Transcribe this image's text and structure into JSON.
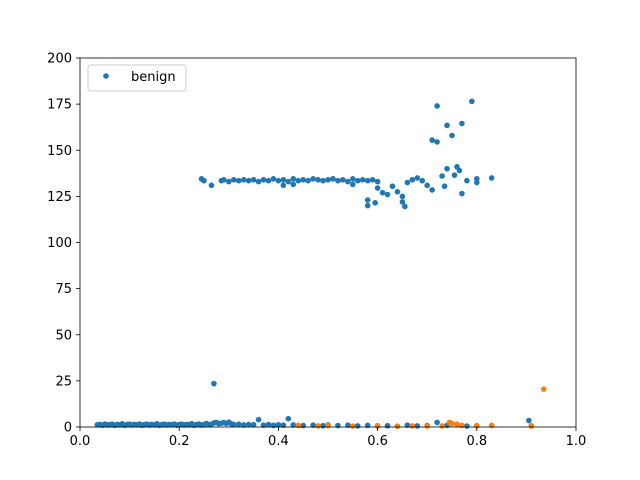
{
  "chart_data": {
    "type": "scatter",
    "title": "",
    "xlabel": "",
    "ylabel": "",
    "xlim": [
      0.0,
      1.0
    ],
    "ylim": [
      0,
      200
    ],
    "x_ticks": [
      "0.0",
      "0.2",
      "0.4",
      "0.6",
      "0.8",
      "1.0"
    ],
    "y_ticks": [
      "0",
      "25",
      "50",
      "75",
      "100",
      "125",
      "150",
      "175",
      "200"
    ],
    "grid": false,
    "legend": {
      "placement": "top-left",
      "entries": [
        "benign"
      ]
    },
    "series": [
      {
        "name": "benign",
        "color": "#1f77b4",
        "points": [
          [
            0.035,
            1.2
          ],
          [
            0.04,
            1.4
          ],
          [
            0.045,
            1.0
          ],
          [
            0.05,
            1.6
          ],
          [
            0.055,
            1.1
          ],
          [
            0.06,
            1.3
          ],
          [
            0.065,
            1.5
          ],
          [
            0.07,
            0.9
          ],
          [
            0.075,
            1.4
          ],
          [
            0.08,
            1.2
          ],
          [
            0.085,
            1.7
          ],
          [
            0.09,
            1.0
          ],
          [
            0.095,
            1.3
          ],
          [
            0.1,
            1.5
          ],
          [
            0.105,
            1.1
          ],
          [
            0.11,
            1.4
          ],
          [
            0.115,
            1.2
          ],
          [
            0.12,
            1.6
          ],
          [
            0.125,
            1.0
          ],
          [
            0.13,
            1.3
          ],
          [
            0.135,
            1.5
          ],
          [
            0.14,
            1.1
          ],
          [
            0.145,
            1.4
          ],
          [
            0.15,
            1.2
          ],
          [
            0.155,
            1.7
          ],
          [
            0.16,
            1.0
          ],
          [
            0.165,
            1.3
          ],
          [
            0.17,
            1.5
          ],
          [
            0.175,
            1.1
          ],
          [
            0.18,
            1.4
          ],
          [
            0.185,
            1.2
          ],
          [
            0.19,
            1.6
          ],
          [
            0.195,
            1.0
          ],
          [
            0.2,
            1.3
          ],
          [
            0.205,
            1.5
          ],
          [
            0.21,
            1.1
          ],
          [
            0.215,
            1.4
          ],
          [
            0.22,
            1.2
          ],
          [
            0.225,
            1.8
          ],
          [
            0.23,
            1.0
          ],
          [
            0.235,
            1.3
          ],
          [
            0.24,
            1.6
          ],
          [
            0.245,
            1.1
          ],
          [
            0.25,
            1.4
          ],
          [
            0.255,
            1.9
          ],
          [
            0.26,
            1.2
          ],
          [
            0.265,
            1.5
          ],
          [
            0.27,
            2.2
          ],
          [
            0.275,
            2.5
          ],
          [
            0.28,
            1.8
          ],
          [
            0.285,
            2.1
          ],
          [
            0.29,
            2.4
          ],
          [
            0.295,
            1.9
          ],
          [
            0.3,
            2.6
          ],
          [
            0.305,
            1.7
          ],
          [
            0.31,
            1.3
          ],
          [
            0.32,
            1.5
          ],
          [
            0.33,
            1.1
          ],
          [
            0.34,
            1.4
          ],
          [
            0.35,
            1.2
          ],
          [
            0.36,
            4.0
          ],
          [
            0.37,
            1.0
          ],
          [
            0.38,
            1.3
          ],
          [
            0.39,
            0.9
          ],
          [
            0.4,
            1.2
          ],
          [
            0.41,
            1.0
          ],
          [
            0.42,
            4.5
          ],
          [
            0.43,
            1.1
          ],
          [
            0.45,
            0.8
          ],
          [
            0.47,
            1.0
          ],
          [
            0.49,
            0.7
          ],
          [
            0.5,
            1.1
          ],
          [
            0.52,
            0.8
          ],
          [
            0.54,
            1.0
          ],
          [
            0.56,
            0.6
          ],
          [
            0.58,
            0.9
          ],
          [
            0.6,
            0.5
          ],
          [
            0.62,
            0.7
          ],
          [
            0.64,
            0.4
          ],
          [
            0.66,
            1.0
          ],
          [
            0.68,
            0.6
          ],
          [
            0.7,
            0.8
          ],
          [
            0.72,
            2.5
          ],
          [
            0.74,
            0.9
          ],
          [
            0.76,
            1.5
          ],
          [
            0.78,
            0.5
          ],
          [
            0.8,
            0.7
          ],
          [
            0.905,
            3.5
          ],
          [
            0.91,
            0.6
          ],
          [
            0.27,
            23.5
          ],
          [
            0.245,
            134.5
          ],
          [
            0.25,
            133.5
          ],
          [
            0.265,
            131.0
          ],
          [
            0.285,
            133.5
          ],
          [
            0.29,
            134.0
          ],
          [
            0.3,
            133.0
          ],
          [
            0.31,
            134.0
          ],
          [
            0.32,
            133.5
          ],
          [
            0.33,
            134.0
          ],
          [
            0.34,
            133.5
          ],
          [
            0.35,
            134.0
          ],
          [
            0.36,
            133.0
          ],
          [
            0.37,
            134.0
          ],
          [
            0.38,
            133.5
          ],
          [
            0.39,
            134.5
          ],
          [
            0.4,
            133.5
          ],
          [
            0.41,
            134.0
          ],
          [
            0.42,
            133.0
          ],
          [
            0.43,
            134.5
          ],
          [
            0.44,
            133.5
          ],
          [
            0.45,
            134.0
          ],
          [
            0.46,
            133.5
          ],
          [
            0.47,
            134.5
          ],
          [
            0.48,
            134.0
          ],
          [
            0.49,
            133.5
          ],
          [
            0.5,
            134.0
          ],
          [
            0.51,
            134.5
          ],
          [
            0.52,
            133.5
          ],
          [
            0.53,
            134.0
          ],
          [
            0.54,
            133.0
          ],
          [
            0.55,
            134.5
          ],
          [
            0.56,
            133.5
          ],
          [
            0.57,
            134.0
          ],
          [
            0.58,
            133.5
          ],
          [
            0.59,
            134.0
          ],
          [
            0.6,
            133.0
          ],
          [
            0.41,
            131.0
          ],
          [
            0.43,
            131.5
          ],
          [
            0.55,
            131.5
          ],
          [
            0.58,
            123.0
          ],
          [
            0.58,
            120.0
          ],
          [
            0.595,
            121.5
          ],
          [
            0.6,
            129.5
          ],
          [
            0.61,
            127.0
          ],
          [
            0.62,
            126.0
          ],
          [
            0.63,
            130.5
          ],
          [
            0.64,
            127.5
          ],
          [
            0.65,
            125.0
          ],
          [
            0.65,
            122.0
          ],
          [
            0.655,
            119.5
          ],
          [
            0.66,
            132.5
          ],
          [
            0.67,
            134.0
          ],
          [
            0.68,
            135.0
          ],
          [
            0.69,
            133.5
          ],
          [
            0.7,
            131.0
          ],
          [
            0.71,
            128.5
          ],
          [
            0.71,
            155.5
          ],
          [
            0.72,
            174.0
          ],
          [
            0.72,
            154.5
          ],
          [
            0.73,
            136.0
          ],
          [
            0.735,
            130.5
          ],
          [
            0.74,
            140.0
          ],
          [
            0.74,
            163.5
          ],
          [
            0.75,
            158.0
          ],
          [
            0.755,
            136.5
          ],
          [
            0.76,
            141.0
          ],
          [
            0.765,
            139.0
          ],
          [
            0.77,
            164.5
          ],
          [
            0.77,
            126.5
          ],
          [
            0.78,
            133.5
          ],
          [
            0.79,
            176.5
          ],
          [
            0.8,
            134.5
          ],
          [
            0.8,
            132.5
          ],
          [
            0.83,
            135.0
          ]
        ]
      },
      {
        "name": "",
        "color": "#ff7f0e",
        "points": [
          [
            0.44,
            0.9
          ],
          [
            0.48,
            0.6
          ],
          [
            0.5,
            0.8
          ],
          [
            0.55,
            0.5
          ],
          [
            0.6,
            0.7
          ],
          [
            0.64,
            0.4
          ],
          [
            0.67,
            0.6
          ],
          [
            0.7,
            0.5
          ],
          [
            0.73,
            0.6
          ],
          [
            0.745,
            2.5
          ],
          [
            0.75,
            1.8
          ],
          [
            0.76,
            1.5
          ],
          [
            0.77,
            0.9
          ],
          [
            0.8,
            0.7
          ],
          [
            0.83,
            0.9
          ],
          [
            0.91,
            0.5
          ],
          [
            0.935,
            20.5
          ]
        ]
      }
    ]
  }
}
